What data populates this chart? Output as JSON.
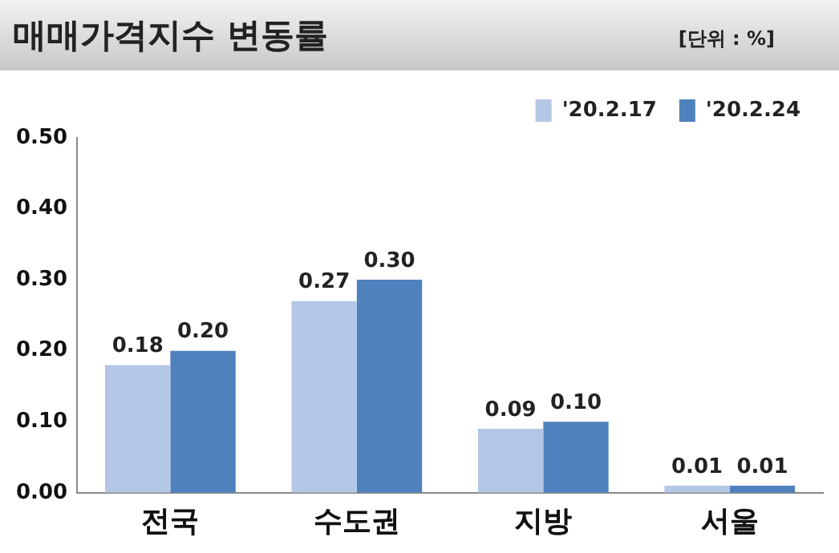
{
  "chart_data": {
    "type": "bar",
    "title": "매매가격지수 변동률",
    "annotations": [
      "[단위 : %]"
    ],
    "categories": [
      "전국",
      "수도권",
      "지방",
      "서울"
    ],
    "series": [
      {
        "name": "'20.2.17",
        "color": "#b4c7e7",
        "values": [
          0.18,
          0.27,
          0.09,
          0.01
        ],
        "value_labels": [
          "0.18",
          "0.27",
          "0.09",
          "0.01"
        ]
      },
      {
        "name": "'20.2.24",
        "color": "#4f81bd",
        "values": [
          0.2,
          0.3,
          0.1,
          0.01
        ],
        "value_labels": [
          "0.20",
          "0.30",
          "0.10",
          "0.01"
        ]
      }
    ],
    "ylim": [
      0,
      0.5
    ],
    "yticks": [
      {
        "value": 0,
        "label": "0.00"
      },
      {
        "value": 0.1,
        "label": "0.10"
      },
      {
        "value": 0.2,
        "label": "0.20"
      },
      {
        "value": 0.3,
        "label": "0.30"
      },
      {
        "value": 0.4,
        "label": "0.40"
      },
      {
        "value": 0.5,
        "label": "0.50"
      }
    ],
    "grid": false,
    "legend": "top right"
  }
}
